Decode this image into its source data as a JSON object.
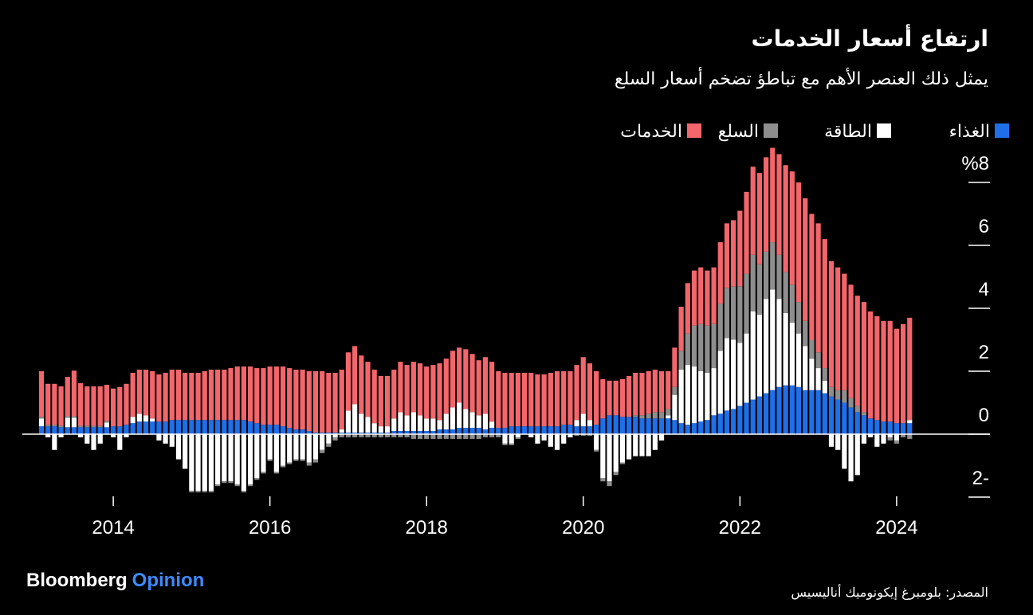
{
  "chart_data": {
    "type": "bar",
    "stacked": true,
    "title": "ارتفاع أسعار الخدمات",
    "subtitle": "يمثل ذلك العنصر الأهم مع تباطؤ تضخم أسعار السلع",
    "source": "المصدر: بلومبرغ إيكونوميك أناليسيس",
    "logo": [
      "Bloomberg",
      "Opinion"
    ],
    "ylim": [
      -2.6,
      9.2
    ],
    "yticks": [
      {
        "value": 8,
        "label": "%8"
      },
      6,
      4,
      2,
      0,
      {
        "value": -2,
        "label": "2-"
      }
    ],
    "categories": [
      null,
      null,
      null,
      null,
      null,
      null,
      null,
      null,
      null,
      null,
      null,
      "2014",
      null,
      null,
      null,
      null,
      null,
      null,
      null,
      null,
      null,
      null,
      null,
      null,
      null,
      null,
      null,
      null,
      null,
      null,
      null,
      null,
      null,
      null,
      null,
      "2016",
      null,
      null,
      null,
      null,
      null,
      null,
      null,
      null,
      null,
      null,
      null,
      null,
      null,
      null,
      null,
      null,
      null,
      null,
      null,
      null,
      null,
      null,
      null,
      "2018",
      null,
      null,
      null,
      null,
      null,
      null,
      null,
      null,
      null,
      null,
      null,
      null,
      null,
      null,
      null,
      null,
      null,
      null,
      null,
      null,
      null,
      null,
      null,
      "2020",
      null,
      null,
      null,
      null,
      null,
      null,
      null,
      null,
      null,
      null,
      null,
      null,
      null,
      null,
      null,
      null,
      null,
      null,
      null,
      null,
      null,
      null,
      null,
      "2022",
      null,
      null,
      null,
      null,
      null,
      null,
      null,
      null,
      null,
      null,
      null,
      null,
      null,
      null,
      null,
      null,
      null,
      null,
      null,
      null,
      null,
      null,
      null,
      "2024",
      null,
      null
    ],
    "series": [
      {
        "name": "الغذاء",
        "color": "#1f6fe8",
        "values": [
          0.25,
          0.25,
          0.25,
          0.22,
          0.22,
          0.22,
          0.22,
          0.22,
          0.22,
          0.22,
          0.22,
          0.25,
          0.25,
          0.3,
          0.35,
          0.4,
          0.4,
          0.4,
          0.4,
          0.4,
          0.45,
          0.45,
          0.45,
          0.45,
          0.45,
          0.45,
          0.45,
          0.45,
          0.45,
          0.45,
          0.45,
          0.45,
          0.4,
          0.35,
          0.3,
          0.3,
          0.3,
          0.25,
          0.2,
          0.15,
          0.15,
          0.1,
          0.05,
          0.05,
          0.05,
          0.05,
          0.05,
          0.05,
          0.05,
          0.05,
          0.05,
          0.05,
          0.05,
          0.05,
          0.1,
          0.1,
          0.1,
          0.1,
          0.1,
          0.1,
          0.1,
          0.15,
          0.15,
          0.15,
          0.2,
          0.2,
          0.2,
          0.2,
          0.15,
          0.2,
          0.2,
          0.2,
          0.25,
          0.25,
          0.25,
          0.25,
          0.25,
          0.25,
          0.25,
          0.25,
          0.3,
          0.3,
          0.25,
          0.25,
          0.25,
          0.3,
          0.5,
          0.6,
          0.6,
          0.55,
          0.55,
          0.55,
          0.5,
          0.5,
          0.5,
          0.5,
          0.5,
          0.45,
          0.35,
          0.3,
          0.35,
          0.4,
          0.45,
          0.6,
          0.65,
          0.75,
          0.8,
          0.9,
          1.0,
          1.1,
          1.2,
          1.3,
          1.4,
          1.5,
          1.55,
          1.55,
          1.5,
          1.4,
          1.4,
          1.4,
          1.3,
          1.2,
          1.1,
          1.0,
          0.85,
          0.7,
          0.6,
          0.5,
          0.45,
          0.4,
          0.4,
          0.35,
          0.35,
          0.35
        ]
      },
      {
        "name": "الطاقة",
        "color": "#ffffff",
        "values": [
          0.25,
          -0.1,
          -0.5,
          -0.1,
          0.3,
          0.3,
          -0.1,
          -0.3,
          -0.5,
          -0.3,
          0.15,
          -0.1,
          -0.5,
          -0.1,
          0.2,
          0.25,
          0.2,
          0.1,
          -0.2,
          -0.3,
          -0.4,
          -0.8,
          -1.1,
          -1.8,
          -1.8,
          -1.8,
          -1.8,
          -1.6,
          -1.5,
          -1.5,
          -1.6,
          -1.8,
          -1.6,
          -1.4,
          -1.2,
          -0.8,
          -1.2,
          -1.0,
          -0.9,
          -0.8,
          -0.8,
          -0.9,
          -0.8,
          -0.5,
          -0.3,
          -0.1,
          0.1,
          0.7,
          0.9,
          0.6,
          0.5,
          0.3,
          0.2,
          0.2,
          0.4,
          0.6,
          0.5,
          0.6,
          0.5,
          0.4,
          0.4,
          0.3,
          0.5,
          0.7,
          0.8,
          0.6,
          0.5,
          0.4,
          0.5,
          0.2,
          0.0,
          -0.3,
          -0.3,
          -0.1,
          0.0,
          -0.1,
          -0.3,
          -0.2,
          -0.4,
          -0.5,
          -0.3,
          -0.1,
          0.2,
          0.4,
          0.2,
          -0.5,
          -1.4,
          -1.5,
          -1.2,
          -0.9,
          -0.8,
          -0.7,
          -0.7,
          -0.7,
          -0.5,
          -0.2,
          0.1,
          0.8,
          1.7,
          1.9,
          1.8,
          1.6,
          1.5,
          1.5,
          2.0,
          2.3,
          2.2,
          2.0,
          2.2,
          2.8,
          2.6,
          3.0,
          3.2,
          2.8,
          2.3,
          2.0,
          1.7,
          1.4,
          1.0,
          0.7,
          0.4,
          -0.4,
          -0.5,
          -1.1,
          -1.5,
          -1.3,
          -0.3,
          -0.1,
          -0.4,
          -0.3,
          -0.1,
          -0.2,
          0.0,
          0.1
        ]
      },
      {
        "name": "السلع",
        "color": "#8e8e8e",
        "values": [
          0.05,
          0.05,
          0.05,
          0.05,
          0.05,
          0.05,
          0.05,
          0.05,
          0.05,
          0.05,
          0.05,
          0,
          0,
          0,
          0,
          0,
          0,
          0,
          0,
          0,
          0,
          0,
          0,
          -0.05,
          -0.05,
          -0.05,
          -0.05,
          -0.05,
          -0.05,
          -0.05,
          -0.05,
          -0.05,
          -0.05,
          -0.05,
          -0.05,
          -0.05,
          -0.05,
          -0.05,
          -0.05,
          -0.05,
          -0.05,
          -0.1,
          -0.1,
          -0.1,
          -0.1,
          -0.1,
          -0.1,
          -0.1,
          -0.1,
          -0.1,
          -0.1,
          -0.1,
          -0.1,
          -0.1,
          -0.1,
          -0.1,
          -0.1,
          -0.15,
          -0.15,
          -0.15,
          -0.15,
          -0.15,
          -0.15,
          -0.15,
          -0.15,
          -0.15,
          -0.15,
          -0.15,
          -0.1,
          -0.1,
          -0.1,
          -0.05,
          -0.05,
          -0.05,
          0,
          0,
          0,
          0,
          0,
          0,
          0,
          0,
          -0.05,
          -0.05,
          -0.05,
          -0.05,
          -0.1,
          -0.15,
          -0.1,
          -0.05,
          0,
          0.05,
          0.1,
          0.15,
          0.2,
          0.2,
          0.2,
          0.25,
          0.6,
          1.0,
          1.3,
          1.5,
          1.5,
          1.4,
          1.5,
          1.6,
          1.7,
          1.8,
          1.9,
          1.8,
          1.6,
          1.5,
          1.5,
          1.4,
          1.3,
          1.2,
          1.0,
          0.8,
          0.6,
          0.5,
          0.4,
          0.3,
          0.3,
          0.4,
          0.3,
          0.2,
          0.1,
          0.0,
          0.0,
          0.0,
          -0.1,
          -0.1,
          -0.1,
          -0.15
        ]
      },
      {
        "name": "الخدمات",
        "color": "#f2666c",
        "values": [
          1.45,
          1.3,
          1.3,
          1.25,
          1.25,
          1.45,
          1.35,
          1.25,
          1.25,
          1.25,
          1.15,
          1.2,
          1.25,
          1.3,
          1.4,
          1.4,
          1.45,
          1.5,
          1.5,
          1.55,
          1.6,
          1.6,
          1.5,
          1.5,
          1.5,
          1.55,
          1.6,
          1.6,
          1.6,
          1.65,
          1.7,
          1.7,
          1.75,
          1.75,
          1.8,
          1.85,
          1.85,
          1.9,
          1.9,
          1.9,
          1.9,
          1.9,
          1.95,
          1.95,
          1.9,
          1.9,
          1.9,
          1.85,
          1.85,
          1.85,
          1.75,
          1.7,
          1.6,
          1.6,
          1.55,
          1.6,
          1.6,
          1.6,
          1.65,
          1.65,
          1.7,
          1.8,
          1.75,
          1.8,
          1.75,
          1.9,
          1.85,
          1.75,
          1.8,
          1.9,
          1.8,
          1.75,
          1.7,
          1.7,
          1.7,
          1.7,
          1.65,
          1.65,
          1.7,
          1.75,
          1.7,
          1.7,
          1.75,
          1.8,
          1.8,
          1.7,
          1.25,
          1.1,
          1.1,
          1.2,
          1.3,
          1.35,
          1.35,
          1.35,
          1.35,
          1.3,
          1.2,
          1.25,
          1.4,
          1.6,
          1.75,
          1.8,
          1.75,
          1.8,
          1.95,
          2.05,
          2.1,
          2.4,
          2.6,
          2.8,
          2.9,
          3.0,
          3.0,
          3.2,
          3.4,
          3.6,
          3.8,
          3.9,
          4.0,
          4.1,
          4.1,
          4.0,
          3.9,
          3.7,
          3.6,
          3.5,
          3.5,
          3.4,
          3.3,
          3.2,
          3.2,
          3.0,
          3.15,
          3.25
        ]
      }
    ]
  }
}
